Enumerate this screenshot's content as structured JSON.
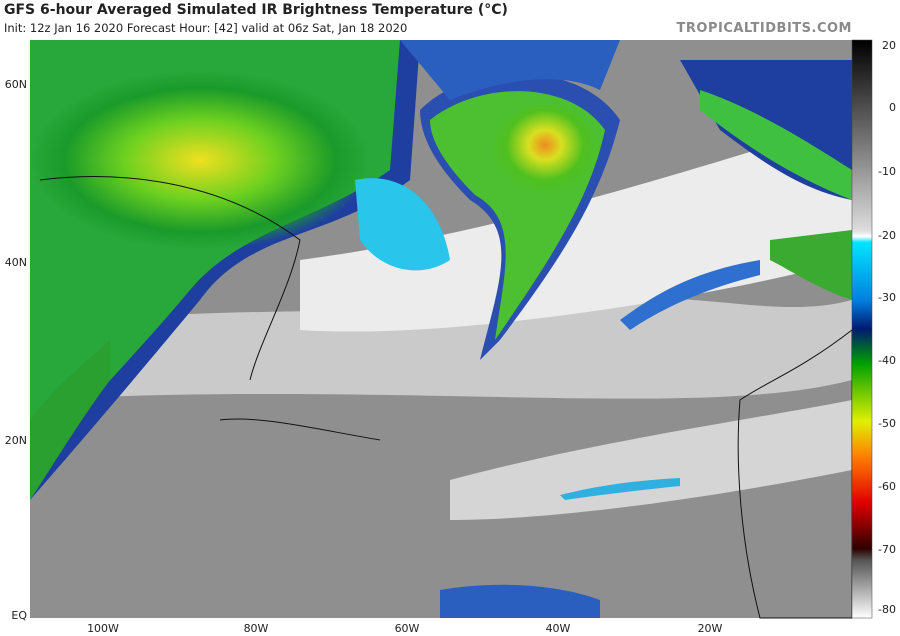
{
  "header": {
    "title": "GFS 6-hour Averaged Simulated IR Brightness Temperature (°C)",
    "subtitle": "Init: 12z Jan 16 2020   Forecast Hour: [42]   valid at 06z Sat, Jan 18 2020",
    "credit": "TROPICALTIDBITS.COM"
  },
  "map": {
    "lat_labels": [
      "60N",
      "40N",
      "20N",
      "EQ"
    ],
    "lon_labels": [
      "100W",
      "80W",
      "60W",
      "40W",
      "20W"
    ]
  },
  "colorbar": {
    "ticks": [
      "20",
      "0",
      "-10",
      "-20",
      "-30",
      "-40",
      "-50",
      "-60",
      "-70",
      "-80"
    ]
  }
}
